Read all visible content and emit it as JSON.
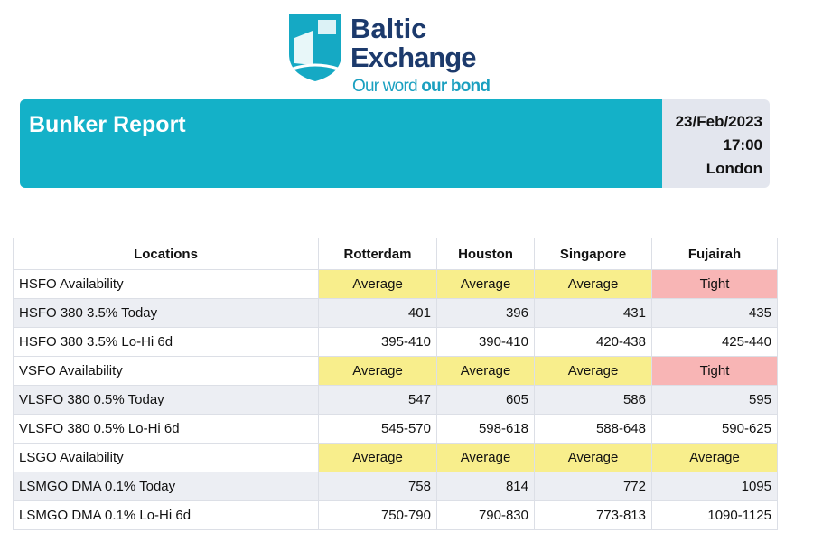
{
  "logo": {
    "line1": "Baltic",
    "line2": "Exchange",
    "tagline_a": "Our word",
    "tagline_b": "our bond"
  },
  "banner": {
    "title": "Bunker Report",
    "date": "23/Feb/2023",
    "time": "17:00",
    "place": "London"
  },
  "table": {
    "headers": [
      "Locations",
      "Rotterdam",
      "Houston",
      "Singapore",
      "Fujairah"
    ],
    "rows": [
      [
        "HSFO Availability",
        "Average",
        "Average",
        "Average",
        "Tight"
      ],
      [
        "HSFO 380 3.5% Today",
        401,
        396,
        431,
        435
      ],
      [
        "HSFO 380 3.5% Lo-Hi 6d",
        "395-410",
        "390-410",
        "420-438",
        "425-440"
      ],
      [
        "VSFO Availability",
        "Average",
        "Average",
        "Average",
        "Tight"
      ],
      [
        "VLSFO 380 0.5% Today",
        547,
        605,
        586,
        595
      ],
      [
        "VLSFO 380 0.5% Lo-Hi 6d",
        "545-570",
        "598-618",
        "588-648",
        "590-625"
      ],
      [
        "LSGO Availability",
        "Average",
        "Average",
        "Average",
        "Average"
      ],
      [
        "LSMGO DMA 0.1% Today",
        758,
        814,
        772,
        1095
      ],
      [
        "LSMGO DMA 0.1% Lo-Hi 6d",
        "750-790",
        "790-830",
        "773-813",
        "1090-1125"
      ]
    ]
  }
}
